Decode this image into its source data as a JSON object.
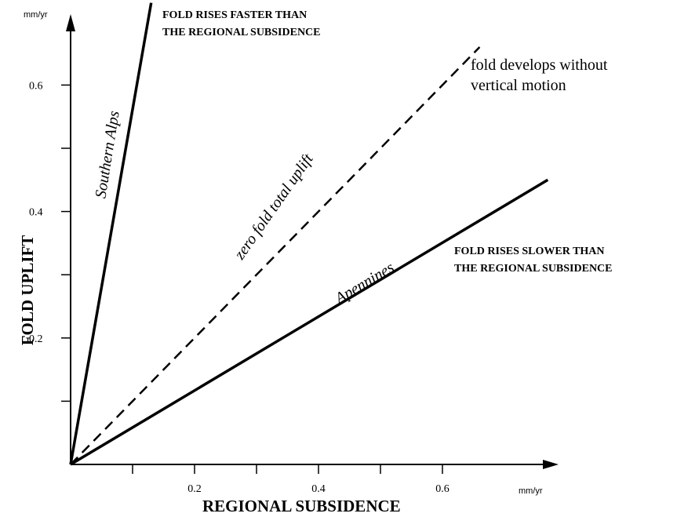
{
  "chart_data": {
    "type": "line",
    "title": "",
    "xlabel": "REGIONAL SUBSIDENCE",
    "ylabel": "FOLD UPLIFT",
    "x_unit": "mm/yr",
    "y_unit": "mm/yr",
    "xlim": [
      0,
      0.75
    ],
    "ylim": [
      0,
      0.75
    ],
    "x_ticks": [
      0.1,
      0.2,
      0.3,
      0.4,
      0.5,
      0.6
    ],
    "y_ticks": [
      0.1,
      0.2,
      0.3,
      0.4,
      0.5,
      0.6
    ],
    "x_tick_labels": [
      "",
      "0.2",
      "",
      "0.4",
      "",
      "0.6"
    ],
    "y_tick_labels": [
      "",
      "0.2",
      "",
      "0.4",
      "",
      "0.6"
    ],
    "grid": false,
    "series": [
      {
        "name": "Southern Alps",
        "style": "solid",
        "x": [
          0,
          0.13
        ],
        "y": [
          0,
          0.73
        ]
      },
      {
        "name": "zero fold total uplift",
        "style": "dashed",
        "x": [
          0,
          0.66
        ],
        "y": [
          0,
          0.66
        ]
      },
      {
        "name": "Apennines",
        "style": "solid",
        "x": [
          0,
          0.77
        ],
        "y": [
          0,
          0.45
        ]
      }
    ],
    "annotations": {
      "above": [
        "FOLD RISES FASTER THAN",
        "THE REGIONAL SUBSIDENCE"
      ],
      "diagonal": [
        "fold develops without",
        "vertical motion"
      ],
      "below": [
        "FOLD RISES SLOWER THAN",
        "THE REGIONAL SUBSIDENCE"
      ]
    }
  }
}
